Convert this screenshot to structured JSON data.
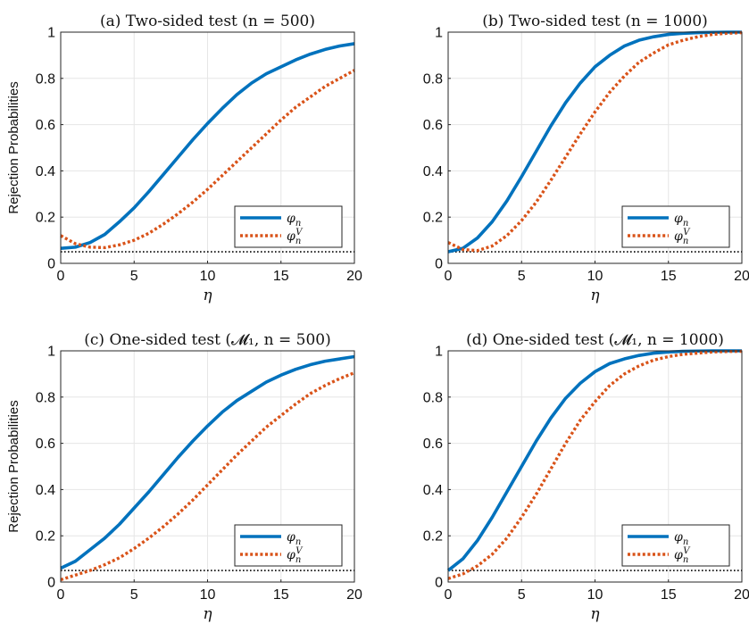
{
  "chart_data": [
    {
      "type": "line",
      "title": "(a) Two-sided test (n = 500)",
      "xlabel": "η",
      "ylabel": "Rejection Probabilities",
      "xlim": [
        0,
        20
      ],
      "ylim": [
        0,
        1
      ],
      "xticks": [
        "0",
        "5",
        "10",
        "15",
        "20"
      ],
      "yticks": [
        "0",
        "0.2",
        "0.4",
        "0.6",
        "0.8",
        "1"
      ],
      "grid": true,
      "legend_position": "bottom-right",
      "reference_line": {
        "y": 0.05,
        "style": "dotted",
        "color": "#000000"
      },
      "x": [
        0,
        1,
        2,
        3,
        4,
        5,
        6,
        7,
        8,
        9,
        10,
        11,
        12,
        13,
        14,
        15,
        16,
        17,
        18,
        19,
        20
      ],
      "series": [
        {
          "name": "φ_n",
          "color": "#0072BD",
          "style": "solid",
          "values": [
            0.065,
            0.07,
            0.09,
            0.125,
            0.18,
            0.24,
            0.31,
            0.385,
            0.46,
            0.535,
            0.605,
            0.67,
            0.73,
            0.78,
            0.82,
            0.85,
            0.88,
            0.905,
            0.925,
            0.94,
            0.95
          ]
        },
        {
          "name": "φ_n^V",
          "color": "#D95319",
          "style": "dotted",
          "values": [
            0.12,
            0.085,
            0.07,
            0.068,
            0.08,
            0.1,
            0.13,
            0.17,
            0.215,
            0.265,
            0.32,
            0.38,
            0.44,
            0.5,
            0.56,
            0.62,
            0.675,
            0.72,
            0.765,
            0.8,
            0.835
          ]
        }
      ]
    },
    {
      "type": "line",
      "title": "(b) Two-sided test (n = 1000)",
      "xlabel": "η",
      "ylabel": "",
      "xlim": [
        0,
        20
      ],
      "ylim": [
        0,
        1
      ],
      "xticks": [
        "0",
        "5",
        "10",
        "15",
        "20"
      ],
      "yticks": [
        "0",
        "0.2",
        "0.4",
        "0.6",
        "0.8",
        "1"
      ],
      "grid": true,
      "legend_position": "bottom-right",
      "reference_line": {
        "y": 0.05,
        "style": "dotted",
        "color": "#000000"
      },
      "x": [
        0,
        1,
        2,
        3,
        4,
        5,
        6,
        7,
        8,
        9,
        10,
        11,
        12,
        13,
        14,
        15,
        16,
        17,
        18,
        19,
        20
      ],
      "series": [
        {
          "name": "φ_n",
          "color": "#0072BD",
          "style": "solid",
          "values": [
            0.05,
            0.065,
            0.11,
            0.18,
            0.27,
            0.375,
            0.485,
            0.595,
            0.695,
            0.78,
            0.85,
            0.9,
            0.94,
            0.965,
            0.98,
            0.99,
            0.995,
            0.998,
            0.999,
            1.0,
            1.0
          ]
        },
        {
          "name": "φ_n^V",
          "color": "#D95319",
          "style": "dotted",
          "values": [
            0.09,
            0.06,
            0.055,
            0.075,
            0.12,
            0.185,
            0.265,
            0.36,
            0.46,
            0.56,
            0.655,
            0.74,
            0.81,
            0.87,
            0.91,
            0.945,
            0.965,
            0.98,
            0.99,
            0.995,
            0.998
          ]
        }
      ]
    },
    {
      "type": "line",
      "title": "(c) One-sided test (𝓜₁, n = 500)",
      "xlabel": "η",
      "ylabel": "Rejection Probabilities",
      "xlim": [
        0,
        20
      ],
      "ylim": [
        0,
        1
      ],
      "xticks": [
        "0",
        "5",
        "10",
        "15",
        "20"
      ],
      "yticks": [
        "0",
        "0.2",
        "0.4",
        "0.6",
        "0.8",
        "1"
      ],
      "grid": true,
      "legend_position": "bottom-right",
      "reference_line": {
        "y": 0.05,
        "style": "dotted",
        "color": "#000000"
      },
      "x": [
        0,
        1,
        2,
        3,
        4,
        5,
        6,
        7,
        8,
        9,
        10,
        11,
        12,
        13,
        14,
        15,
        16,
        17,
        18,
        19,
        20
      ],
      "series": [
        {
          "name": "φ_n",
          "color": "#0072BD",
          "style": "solid",
          "values": [
            0.06,
            0.09,
            0.14,
            0.19,
            0.25,
            0.32,
            0.39,
            0.465,
            0.54,
            0.61,
            0.675,
            0.735,
            0.785,
            0.825,
            0.865,
            0.895,
            0.92,
            0.94,
            0.955,
            0.965,
            0.975
          ]
        },
        {
          "name": "φ_n^V",
          "color": "#D95319",
          "style": "dotted",
          "values": [
            0.01,
            0.03,
            0.05,
            0.075,
            0.105,
            0.145,
            0.19,
            0.24,
            0.295,
            0.355,
            0.42,
            0.485,
            0.55,
            0.61,
            0.67,
            0.72,
            0.77,
            0.815,
            0.85,
            0.88,
            0.905
          ]
        }
      ]
    },
    {
      "type": "line",
      "title": "(d) One-sided test (𝓜₁, n = 1000)",
      "xlabel": "η",
      "ylabel": "",
      "xlim": [
        0,
        20
      ],
      "ylim": [
        0,
        1
      ],
      "xticks": [
        "0",
        "5",
        "10",
        "15",
        "20"
      ],
      "yticks": [
        "0",
        "0.2",
        "0.4",
        "0.6",
        "0.8",
        "1"
      ],
      "grid": true,
      "legend_position": "bottom-right",
      "reference_line": {
        "y": 0.05,
        "style": "dotted",
        "color": "#000000"
      },
      "x": [
        0,
        1,
        2,
        3,
        4,
        5,
        6,
        7,
        8,
        9,
        10,
        11,
        12,
        13,
        14,
        15,
        16,
        17,
        18,
        19,
        20
      ],
      "series": [
        {
          "name": "φ_n",
          "color": "#0072BD",
          "style": "solid",
          "values": [
            0.05,
            0.1,
            0.18,
            0.28,
            0.39,
            0.5,
            0.61,
            0.71,
            0.795,
            0.86,
            0.91,
            0.945,
            0.965,
            0.98,
            0.99,
            0.995,
            0.998,
            0.999,
            1.0,
            1.0,
            1.0
          ]
        },
        {
          "name": "φ_n^V",
          "color": "#D95319",
          "style": "dotted",
          "values": [
            0.015,
            0.035,
            0.07,
            0.12,
            0.19,
            0.28,
            0.38,
            0.49,
            0.6,
            0.7,
            0.78,
            0.85,
            0.9,
            0.935,
            0.96,
            0.975,
            0.985,
            0.99,
            0.995,
            0.997,
            0.998
          ]
        }
      ]
    }
  ]
}
